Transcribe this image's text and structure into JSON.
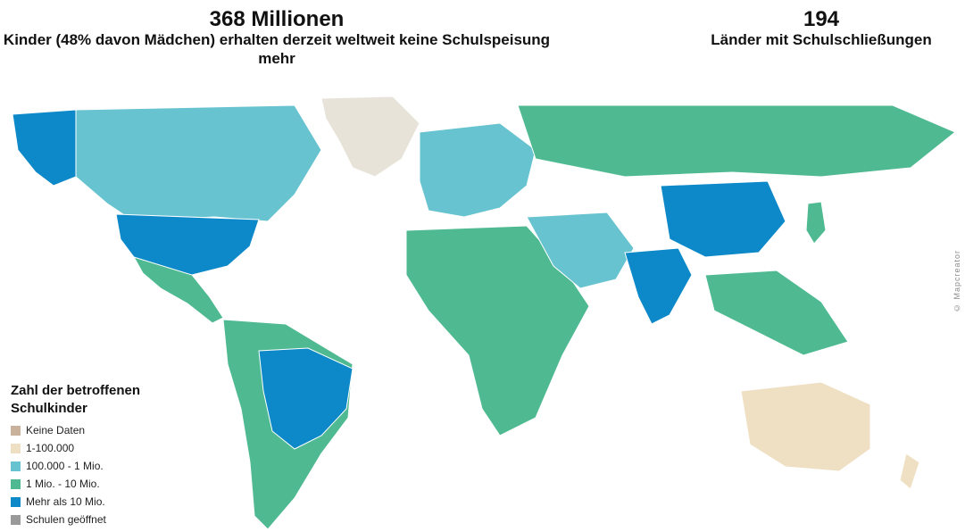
{
  "stats": {
    "left": {
      "number": "368 Millionen",
      "description": "Kinder (48% davon Mädchen) erhalten derzeit weltweit keine Schulspeisung mehr"
    },
    "right": {
      "number": "194",
      "description": "Länder mit Schulschließungen"
    }
  },
  "legend": {
    "title": "Zahl der betroffenen Schulkinder",
    "items": [
      {
        "label": "Keine Daten",
        "color": "#c9b19b"
      },
      {
        "label": "1-100.000",
        "color": "#efe0c4"
      },
      {
        "label": "100.000 - 1 Mio.",
        "color": "#66c3cf"
      },
      {
        "label": "1 Mio. - 10 Mio.",
        "color": "#4fba92"
      },
      {
        "label": "Mehr als 10 Mio.",
        "color": "#0d89c9"
      },
      {
        "label": "Schulen geöffnet",
        "color": "#9a9a9a"
      }
    ]
  },
  "credit": "© Mapcreator"
}
